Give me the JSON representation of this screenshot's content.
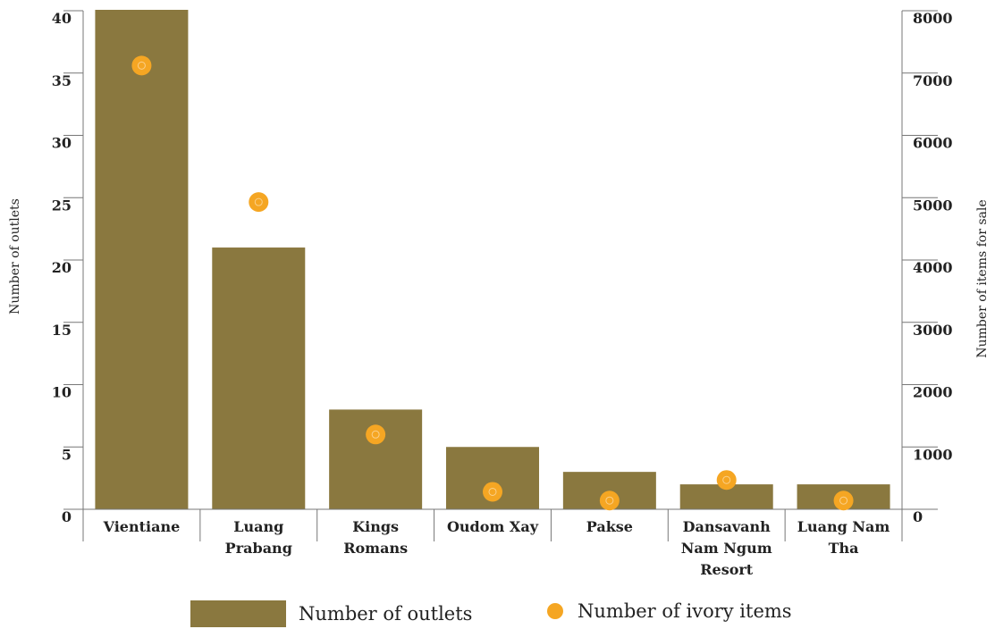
{
  "chart_data": {
    "type": "bar",
    "categories": [
      [
        "Vientiane"
      ],
      [
        "Luang",
        "Prabang"
      ],
      [
        "Kings",
        "Romans"
      ],
      [
        "Oudom Xay"
      ],
      [
        "Pakse"
      ],
      [
        "Dansavanh",
        "Nam Ngum",
        "Resort"
      ],
      [
        "Luang Nam",
        "Tha"
      ]
    ],
    "series": [
      {
        "name": "Number of outlets",
        "type": "bar",
        "axis": "left",
        "color": "#8a783f",
        "values": [
          41,
          21,
          8,
          5,
          3,
          2,
          2
        ]
      },
      {
        "name": "Number of ivory items",
        "type": "scatter",
        "axis": "right",
        "color": "#f5a623",
        "values": [
          7120,
          4930,
          1200,
          280,
          140,
          470,
          140
        ]
      }
    ],
    "y_left": {
      "label": "Number of outlets",
      "ylim": [
        0,
        40
      ],
      "ticks": [
        0,
        5,
        10,
        15,
        20,
        25,
        30,
        35,
        40
      ]
    },
    "y_right": {
      "label": "Number of items for sale",
      "ylim": [
        0,
        8000
      ],
      "ticks": [
        0,
        1000,
        2000,
        3000,
        4000,
        5000,
        6000,
        7000,
        8000
      ]
    },
    "legend_position": "bottom",
    "grid": false
  }
}
